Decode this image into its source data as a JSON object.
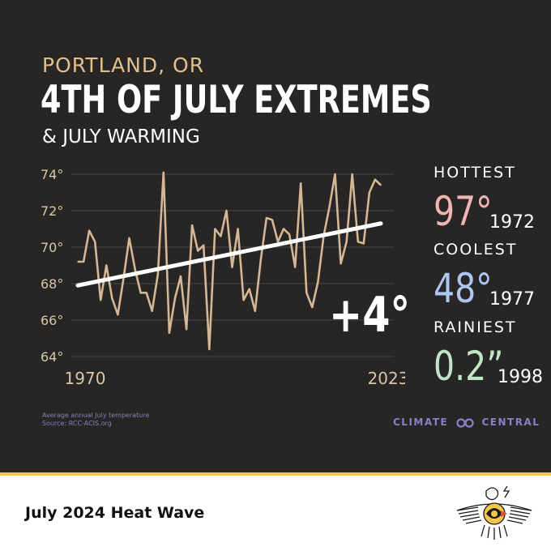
{
  "header": {
    "city": "PORTLAND, OR",
    "title": "4TH OF JULY EXTREMES",
    "subtitle": "& JULY WARMING"
  },
  "chart_data": {
    "type": "line",
    "title": "4TH OF JULY EXTREMES",
    "ylabel": "",
    "xlabel": "",
    "ylim": [
      64,
      74
    ],
    "xlim": [
      1970,
      2023
    ],
    "yticks": [
      "64°",
      "66°",
      "68°",
      "70°",
      "72°",
      "74°"
    ],
    "xtick_labels": [
      "1970",
      "2023"
    ],
    "grid": true,
    "x": [
      1970,
      1971,
      1972,
      1973,
      1974,
      1975,
      1976,
      1977,
      1978,
      1979,
      1980,
      1981,
      1982,
      1983,
      1984,
      1985,
      1986,
      1987,
      1988,
      1989,
      1990,
      1991,
      1992,
      1993,
      1994,
      1995,
      1996,
      1997,
      1998,
      1999,
      2000,
      2001,
      2002,
      2003,
      2004,
      2005,
      2006,
      2007,
      2008,
      2009,
      2010,
      2011,
      2012,
      2013,
      2014,
      2015,
      2016,
      2017,
      2018,
      2019,
      2020,
      2021,
      2022,
      2023
    ],
    "series": [
      {
        "values": [
          69.2,
          69.2,
          70.9,
          70.3,
          67.1,
          69.0,
          67.2,
          66.3,
          68.3,
          70.5,
          68.8,
          67.5,
          67.5,
          66.5,
          68.5,
          74.1,
          65.3,
          67.2,
          68.4,
          65.5,
          71.2,
          69.8,
          70.1,
          64.4,
          71.0,
          70.6,
          72.0,
          68.9,
          71.0,
          67.1,
          67.7,
          66.5,
          69.3,
          71.6,
          71.5,
          70.3,
          71.0,
          70.7,
          68.9,
          73.5,
          67.5,
          66.7,
          68.1,
          70.6,
          72.2,
          74.0,
          69.1,
          70.3,
          74.0,
          70.3,
          70.2,
          73.0,
          73.7,
          73.4
        ]
      }
    ],
    "trend": {
      "start": 67.9,
      "end": 71.3
    }
  },
  "callout": {
    "delta": "+4°"
  },
  "stats": [
    {
      "label": "HOTTEST",
      "value": "97°",
      "year": "1972",
      "color": "#f2b3b3"
    },
    {
      "label": "COOLEST",
      "value": "48°",
      "year": "1977",
      "color": "#aec6f2"
    },
    {
      "label": "RAINIEST",
      "value": "0.2”",
      "year": "1998",
      "color": "#bfe6c4"
    }
  ],
  "notes": {
    "line1": "Average annual July temperature",
    "line2": "Source: RCC-ACIS.org"
  },
  "brand": {
    "left": "CLIMATE",
    "right": "CENTRAL"
  },
  "footer": {
    "title": "July 2024 Heat Wave"
  },
  "colors": {
    "panel_bg": "#272624",
    "series": "#d4b896",
    "accent_gold": "#f3c64a",
    "brand": "#8a7fc8"
  }
}
